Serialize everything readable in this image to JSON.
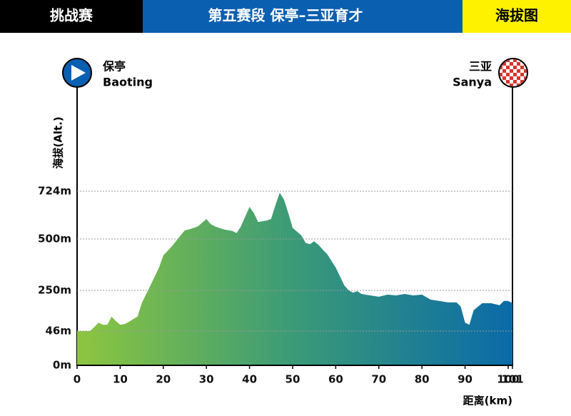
{
  "chart_data": {
    "type": "area",
    "badge_left": "挑战赛",
    "title": "第五赛段  保亭–三亚育才",
    "badge_right": "海拔图",
    "start": {
      "name": "保亭",
      "name_en": "Baoting"
    },
    "finish": {
      "name": "三亚",
      "name_en": "Sanya"
    },
    "ylabel": "海拔(Alt.)",
    "xlabel": "距离(km)",
    "x": [
      0,
      2,
      3,
      4,
      5,
      6,
      7,
      8,
      9,
      10,
      11,
      12,
      13,
      14,
      15,
      17,
      19,
      20,
      22,
      24,
      25,
      26,
      28,
      30,
      31,
      32,
      34,
      36,
      37,
      38,
      39,
      40,
      41,
      42,
      44,
      45,
      46,
      47,
      48,
      49,
      50,
      52,
      53,
      54,
      55,
      56,
      57,
      58,
      60,
      62,
      63,
      64,
      65,
      66,
      68,
      70,
      72,
      74,
      76,
      78,
      80,
      82,
      84,
      86,
      88,
      89,
      90,
      91,
      92,
      94,
      96,
      98,
      99,
      100,
      101
    ],
    "values": [
      46,
      46,
      46,
      67,
      88,
      78,
      78,
      118,
      96,
      78,
      81,
      92,
      106,
      118,
      186,
      274,
      361,
      420,
      465,
      517,
      541,
      545,
      559,
      594,
      570,
      559,
      545,
      538,
      528,
      559,
      605,
      650,
      622,
      580,
      587,
      594,
      657,
      717,
      685,
      622,
      552,
      517,
      482,
      475,
      489,
      472,
      448,
      427,
      361,
      274,
      250,
      239,
      246,
      232,
      225,
      218,
      229,
      225,
      232,
      225,
      229,
      204,
      197,
      190,
      190,
      169,
      88,
      78,
      151,
      186,
      186,
      176,
      197,
      197,
      186
    ],
    "colors": [
      "#8dc63f",
      "#3a9a78",
      "#0a6aa8"
    ],
    "xlim": [
      0,
      101
    ],
    "xticks": [
      0,
      10,
      20,
      30,
      40,
      50,
      60,
      70,
      80,
      90,
      100,
      101
    ],
    "ylim": [
      0,
      724
    ],
    "yticks": [
      {
        "value": 0,
        "label": "0m"
      },
      {
        "value": 46,
        "label": "46m"
      },
      {
        "value": 250,
        "label": "250m"
      },
      {
        "value": 500,
        "label": "500m"
      },
      {
        "value": 724,
        "label": "724m"
      }
    ],
    "grid": true
  }
}
